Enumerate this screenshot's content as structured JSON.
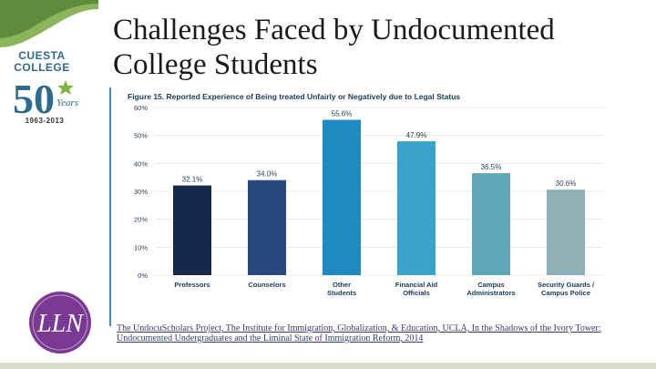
{
  "slide": {
    "title": "Challenges Faced by Undocumented College Students",
    "citation": "The UndocuScholars Project, The Institute for Immigration, Globalization, & Education, UCLA, In the Shadows of the Ivory Tower: Undocumented Undergraduates and the Liminal State of Immigration Reform, 2014"
  },
  "logo": {
    "line1": "CUESTA",
    "line2": "COLLEGE",
    "anniversary": "50",
    "years_word": "Years",
    "year_range": "1963-2013",
    "badge_letters": "LLN"
  },
  "colors": {
    "hill_green": "#8cb45c",
    "hill_dark": "#5e8c3c",
    "logo_blue": "#2f6a8f",
    "star_green": "#7fb241",
    "badge_purple": "#7a3a93"
  },
  "chart_data": {
    "type": "bar",
    "title": "Figure 15. Reported Experience of Being treated Unfairly or Negatively due to Legal Status",
    "categories": [
      "Professors",
      "Counselors",
      "Other Students",
      "Financial Aid Officials",
      "Campus Administrators",
      "Security Guards / Campus Police"
    ],
    "values": [
      32.1,
      34.0,
      55.6,
      47.9,
      36.5,
      30.6
    ],
    "value_labels": [
      "32.1%",
      "34.0%",
      "55.6%",
      "47.9%",
      "36.5%",
      "30.6%"
    ],
    "colors": [
      "#16294a",
      "#27497e",
      "#1f8ac0",
      "#3aa3cc",
      "#5fa8b9",
      "#8fb0b7"
    ],
    "yticks": [
      "0%",
      "10%",
      "20%",
      "30%",
      "40%",
      "50%",
      "60%"
    ],
    "ylim": [
      0,
      60
    ],
    "grid": true,
    "legend": "none"
  }
}
